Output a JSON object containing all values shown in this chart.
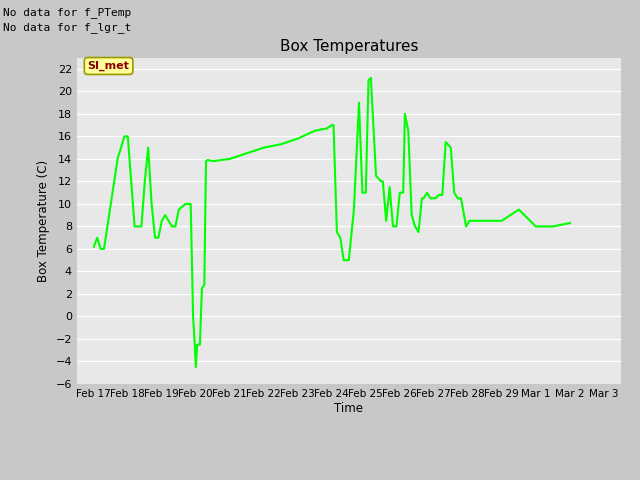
{
  "title": "Box Temperatures",
  "ylabel": "Box Temperature (C)",
  "xlabel": "Time",
  "ylim": [
    -6,
    23
  ],
  "yticks": [
    -6,
    -4,
    -2,
    0,
    2,
    4,
    6,
    8,
    10,
    12,
    14,
    16,
    18,
    20,
    22
  ],
  "line_color": "#00FF00",
  "line_width": 1.5,
  "fig_bg_color": "#C8C8C8",
  "plot_bg_color": "#E8E8E8",
  "no_data_text1": "No data for f_PTemp",
  "no_data_text2": "No data for f_lgr_t",
  "annotation_text": "SI_met",
  "annotation_color": "#8B0000",
  "annotation_bg": "#FFFF99",
  "annotation_border": "#999900",
  "x_dates": [
    "Feb 17",
    "Feb 18",
    "Feb 19",
    "Feb 20",
    "Feb 21",
    "Feb 22",
    "Feb 23",
    "Feb 24",
    "Feb 25",
    "Feb 26",
    "Feb 27",
    "Feb 28",
    "Feb 29",
    "Mar 1",
    "Mar 2",
    "Mar 3"
  ],
  "x_tick_positions": [
    0,
    1,
    2,
    3,
    4,
    5,
    6,
    7,
    8,
    9,
    10,
    11,
    12,
    13,
    14,
    15
  ],
  "xlim": [
    -0.5,
    15.5
  ],
  "data_x": [
    0.0,
    0.1,
    0.2,
    0.3,
    0.5,
    0.7,
    0.9,
    1.0,
    1.1,
    1.2,
    1.3,
    1.4,
    1.5,
    1.6,
    1.7,
    1.8,
    1.9,
    2.0,
    2.1,
    2.2,
    2.3,
    2.4,
    2.5,
    2.7,
    2.85,
    2.92,
    2.97,
    3.0,
    3.04,
    3.08,
    3.12,
    3.18,
    3.25,
    3.3,
    3.35,
    3.5,
    4.0,
    4.5,
    5.0,
    5.5,
    6.0,
    6.5,
    6.85,
    7.0,
    7.05,
    7.15,
    7.25,
    7.35,
    7.5,
    7.65,
    7.8,
    7.9,
    8.0,
    8.08,
    8.15,
    8.3,
    8.45,
    8.5,
    8.6,
    8.7,
    8.8,
    8.9,
    9.0,
    9.1,
    9.15,
    9.25,
    9.35,
    9.45,
    9.55,
    9.65,
    9.7,
    9.8,
    9.9,
    10.05,
    10.15,
    10.25,
    10.35,
    10.5,
    10.6,
    10.7,
    10.8,
    10.95,
    11.05,
    11.5,
    12.0,
    12.5,
    13.0,
    13.5,
    14.0
  ],
  "data_y": [
    6.2,
    7.0,
    6.0,
    6.0,
    10.0,
    14.0,
    16.0,
    16.0,
    12.0,
    8.0,
    8.0,
    8.0,
    12.0,
    15.0,
    10.0,
    7.0,
    7.0,
    8.5,
    9.0,
    8.5,
    8.0,
    8.0,
    9.5,
    10.0,
    10.0,
    0.0,
    -2.5,
    -4.5,
    -2.5,
    -2.5,
    -2.5,
    2.5,
    2.8,
    13.8,
    13.9,
    13.8,
    14.0,
    14.5,
    15.0,
    15.3,
    15.8,
    16.5,
    16.7,
    17.0,
    17.0,
    7.5,
    7.0,
    5.0,
    5.0,
    9.5,
    19.0,
    11.0,
    11.0,
    21.0,
    21.2,
    12.5,
    12.0,
    12.0,
    8.5,
    11.5,
    8.0,
    8.0,
    11.0,
    11.0,
    18.0,
    16.5,
    9.0,
    8.0,
    7.5,
    10.5,
    10.5,
    11.0,
    10.5,
    10.5,
    10.8,
    10.8,
    15.5,
    15.0,
    11.0,
    10.5,
    10.5,
    8.0,
    8.5,
    8.5,
    8.5,
    9.5,
    8.0,
    8.0,
    8.3
  ]
}
